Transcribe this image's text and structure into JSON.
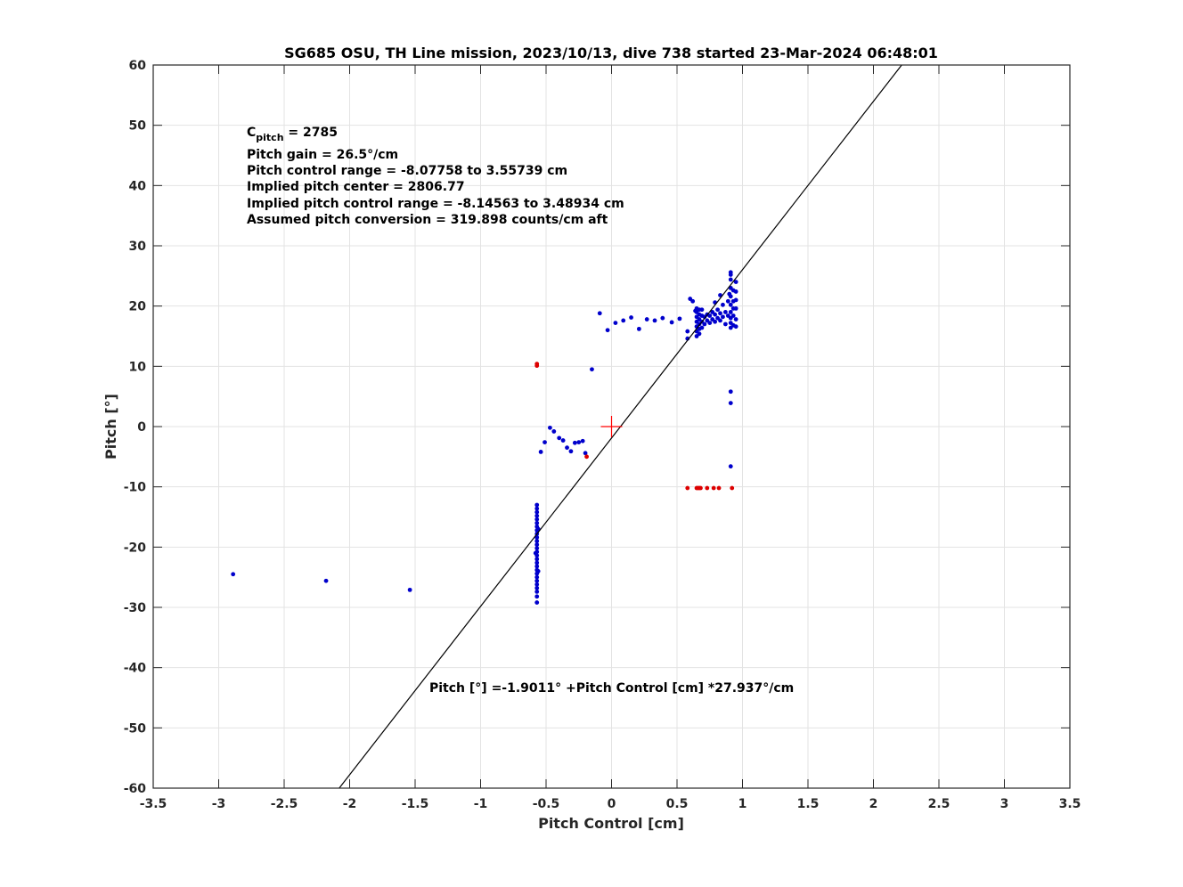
{
  "chart_data": {
    "type": "scatter",
    "title": "SG685 OSU, TH Line mission, 2023/10/13, dive 738 started 23-Mar-2024 06:48:01",
    "xlabel": "Pitch Control [cm]",
    "ylabel": "Pitch [°]",
    "xlim": [
      -3.5,
      3.5
    ],
    "ylim": [
      -60,
      60
    ],
    "xticks": [
      -3.5,
      -3,
      -2.5,
      -2,
      -1.5,
      -1,
      -0.5,
      0,
      0.5,
      1,
      1.5,
      2,
      2.5,
      3,
      3.5
    ],
    "xtick_labels": [
      "-3.5",
      "-3",
      "-2.5",
      "-2",
      "-1.5",
      "-1",
      "-0.5",
      "0",
      "0.5",
      "1",
      "1.5",
      "2",
      "2.5",
      "3",
      "3.5"
    ],
    "yticks": [
      -60,
      -50,
      -40,
      -30,
      -20,
      -10,
      0,
      10,
      20,
      30,
      40,
      50,
      60
    ],
    "ytick_labels": [
      "-60",
      "-50",
      "-40",
      "-30",
      "-20",
      "-10",
      "0",
      "10",
      "20",
      "30",
      "40",
      "50",
      "60"
    ],
    "grid": true,
    "annotations": {
      "cpitch_main": "C",
      "cpitch_sub": "pitch",
      "cpitch_value": " = 2785",
      "lines": [
        "Pitch gain = 26.5°/cm",
        "Pitch control range = -8.07758 to 3.55739 cm",
        "Implied pitch center = 2806.77",
        "Implied pitch control range = -8.14563 to 3.48934 cm",
        "Assumed pitch conversion = 319.898 counts/cm aft"
      ],
      "fit_equation": "Pitch [°] =-1.9011° +Pitch Control [cm] *27.937°/cm"
    },
    "fit_line": {
      "intercept": -1.9011,
      "slope": 27.937,
      "color": "#000000"
    },
    "center_marker": {
      "x": 0,
      "y": 0,
      "color": "#ff0000"
    },
    "series": [
      {
        "color": "#0000cc",
        "points": [
          [
            -2.89,
            -24.5
          ],
          [
            -2.18,
            -25.6
          ],
          [
            -1.54,
            -27.1
          ],
          [
            -0.57,
            -13.0
          ],
          [
            -0.57,
            -13.6
          ],
          [
            -0.57,
            -14.2
          ],
          [
            -0.57,
            -14.8
          ],
          [
            -0.57,
            -15.4
          ],
          [
            -0.57,
            -16.0
          ],
          [
            -0.57,
            -16.6
          ],
          [
            -0.57,
            -17.2
          ],
          [
            -0.57,
            -17.8
          ],
          [
            -0.57,
            -18.4
          ],
          [
            -0.57,
            -19.0
          ],
          [
            -0.57,
            -19.6
          ],
          [
            -0.57,
            -20.2
          ],
          [
            -0.57,
            -20.8
          ],
          [
            -0.57,
            -21.4
          ],
          [
            -0.57,
            -22.0
          ],
          [
            -0.57,
            -22.6
          ],
          [
            -0.57,
            -23.2
          ],
          [
            -0.57,
            -23.8
          ],
          [
            -0.57,
            -24.4
          ],
          [
            -0.57,
            -25.0
          ],
          [
            -0.57,
            -25.6
          ],
          [
            -0.57,
            -26.2
          ],
          [
            -0.57,
            -26.8
          ],
          [
            -0.57,
            -27.4
          ],
          [
            -0.57,
            -28.2
          ],
          [
            -0.57,
            -29.2
          ],
          [
            -0.56,
            -17.0
          ],
          [
            -0.58,
            -21.0
          ],
          [
            -0.56,
            -24.0
          ],
          [
            -0.54,
            -4.2
          ],
          [
            -0.51,
            -2.6
          ],
          [
            -0.47,
            -0.2
          ],
          [
            -0.44,
            -0.8
          ],
          [
            -0.4,
            -1.9
          ],
          [
            -0.37,
            -2.3
          ],
          [
            -0.34,
            -3.5
          ],
          [
            -0.31,
            -4.1
          ],
          [
            -0.28,
            -2.7
          ],
          [
            -0.25,
            -2.6
          ],
          [
            -0.22,
            -2.4
          ],
          [
            -0.2,
            -4.4
          ],
          [
            -0.15,
            9.5
          ],
          [
            -0.09,
            18.8
          ],
          [
            -0.03,
            16.0
          ],
          [
            0.03,
            17.2
          ],
          [
            0.09,
            17.6
          ],
          [
            0.15,
            18.1
          ],
          [
            0.21,
            16.2
          ],
          [
            0.27,
            17.8
          ],
          [
            0.33,
            17.6
          ],
          [
            0.39,
            18.0
          ],
          [
            0.46,
            17.3
          ],
          [
            0.52,
            17.9
          ],
          [
            0.58,
            15.8
          ],
          [
            0.58,
            14.6
          ],
          [
            0.6,
            21.2
          ],
          [
            0.62,
            20.8
          ],
          [
            0.64,
            19.2
          ],
          [
            0.65,
            15.0
          ],
          [
            0.65,
            15.8
          ],
          [
            0.65,
            16.6
          ],
          [
            0.65,
            17.4
          ],
          [
            0.65,
            18.2
          ],
          [
            0.65,
            19.0
          ],
          [
            0.65,
            19.6
          ],
          [
            0.67,
            15.4
          ],
          [
            0.67,
            16.2
          ],
          [
            0.67,
            17.0
          ],
          [
            0.67,
            17.8
          ],
          [
            0.67,
            18.6
          ],
          [
            0.67,
            19.4
          ],
          [
            0.69,
            16.4
          ],
          [
            0.69,
            17.4
          ],
          [
            0.69,
            18.4
          ],
          [
            0.69,
            19.4
          ],
          [
            0.71,
            17.0
          ],
          [
            0.71,
            18.2
          ],
          [
            0.73,
            17.6
          ],
          [
            0.73,
            18.6
          ],
          [
            0.75,
            17.2
          ],
          [
            0.75,
            18.4
          ],
          [
            0.77,
            17.8
          ],
          [
            0.77,
            19.0
          ],
          [
            0.79,
            17.4
          ],
          [
            0.79,
            18.6
          ],
          [
            0.79,
            20.6
          ],
          [
            0.81,
            18.0
          ],
          [
            0.81,
            19.4
          ],
          [
            0.83,
            17.6
          ],
          [
            0.83,
            18.8
          ],
          [
            0.83,
            21.8
          ],
          [
            0.85,
            18.2
          ],
          [
            0.85,
            20.2
          ],
          [
            0.87,
            19.0
          ],
          [
            0.87,
            17.0
          ],
          [
            0.89,
            20.8
          ],
          [
            0.89,
            18.4
          ],
          [
            0.9,
            22.0
          ],
          [
            0.91,
            25.6
          ],
          [
            0.91,
            25.2
          ],
          [
            0.91,
            24.4
          ],
          [
            0.91,
            23.0
          ],
          [
            0.91,
            21.6
          ],
          [
            0.91,
            20.2
          ],
          [
            0.91,
            19.0
          ],
          [
            0.91,
            18.0
          ],
          [
            0.91,
            17.2
          ],
          [
            0.91,
            16.4
          ],
          [
            0.91,
            5.8
          ],
          [
            0.91,
            3.9
          ],
          [
            0.91,
            -6.6
          ],
          [
            0.93,
            22.6
          ],
          [
            0.93,
            20.8
          ],
          [
            0.93,
            19.6
          ],
          [
            0.93,
            18.4
          ],
          [
            0.93,
            16.8
          ],
          [
            0.95,
            24.0
          ],
          [
            0.95,
            22.4
          ],
          [
            0.95,
            21.0
          ],
          [
            0.95,
            19.6
          ],
          [
            0.95,
            17.8
          ],
          [
            0.95,
            16.6
          ]
        ]
      },
      {
        "color": "#dd0000",
        "points": [
          [
            -0.57,
            10.4
          ],
          [
            -0.57,
            10.1
          ],
          [
            -0.19,
            -5.0
          ],
          [
            0.58,
            -10.2
          ],
          [
            0.65,
            -10.2
          ],
          [
            0.66,
            -10.2
          ],
          [
            0.67,
            -10.2
          ],
          [
            0.68,
            -10.2
          ],
          [
            0.73,
            -10.2
          ],
          [
            0.78,
            -10.2
          ],
          [
            0.82,
            -10.2
          ],
          [
            0.92,
            -10.2
          ]
        ]
      }
    ]
  }
}
